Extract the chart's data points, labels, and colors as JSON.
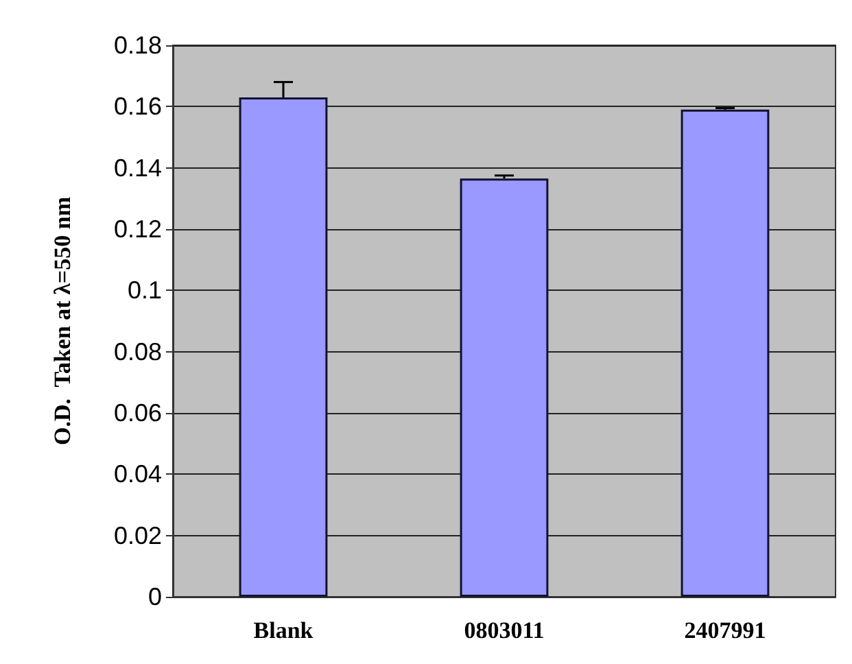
{
  "chart_data": {
    "type": "bar",
    "ylabel": "O.D.  Taken at λ=550 nm",
    "categories": [
      "Blank",
      "0803011",
      "2407991"
    ],
    "values": [
      0.163,
      0.1365,
      0.159
    ],
    "errors": [
      [
        0.163,
        0.168
      ],
      [
        0.1365,
        0.1375
      ],
      [
        0.159,
        0.1595
      ]
    ],
    "color": "#9999ff",
    "ylim": [
      0,
      0.18
    ],
    "yticks": [
      0,
      0.02,
      0.04,
      0.06,
      0.08,
      0.1,
      0.12,
      0.14,
      0.16,
      0.18
    ],
    "grid": "y"
  }
}
